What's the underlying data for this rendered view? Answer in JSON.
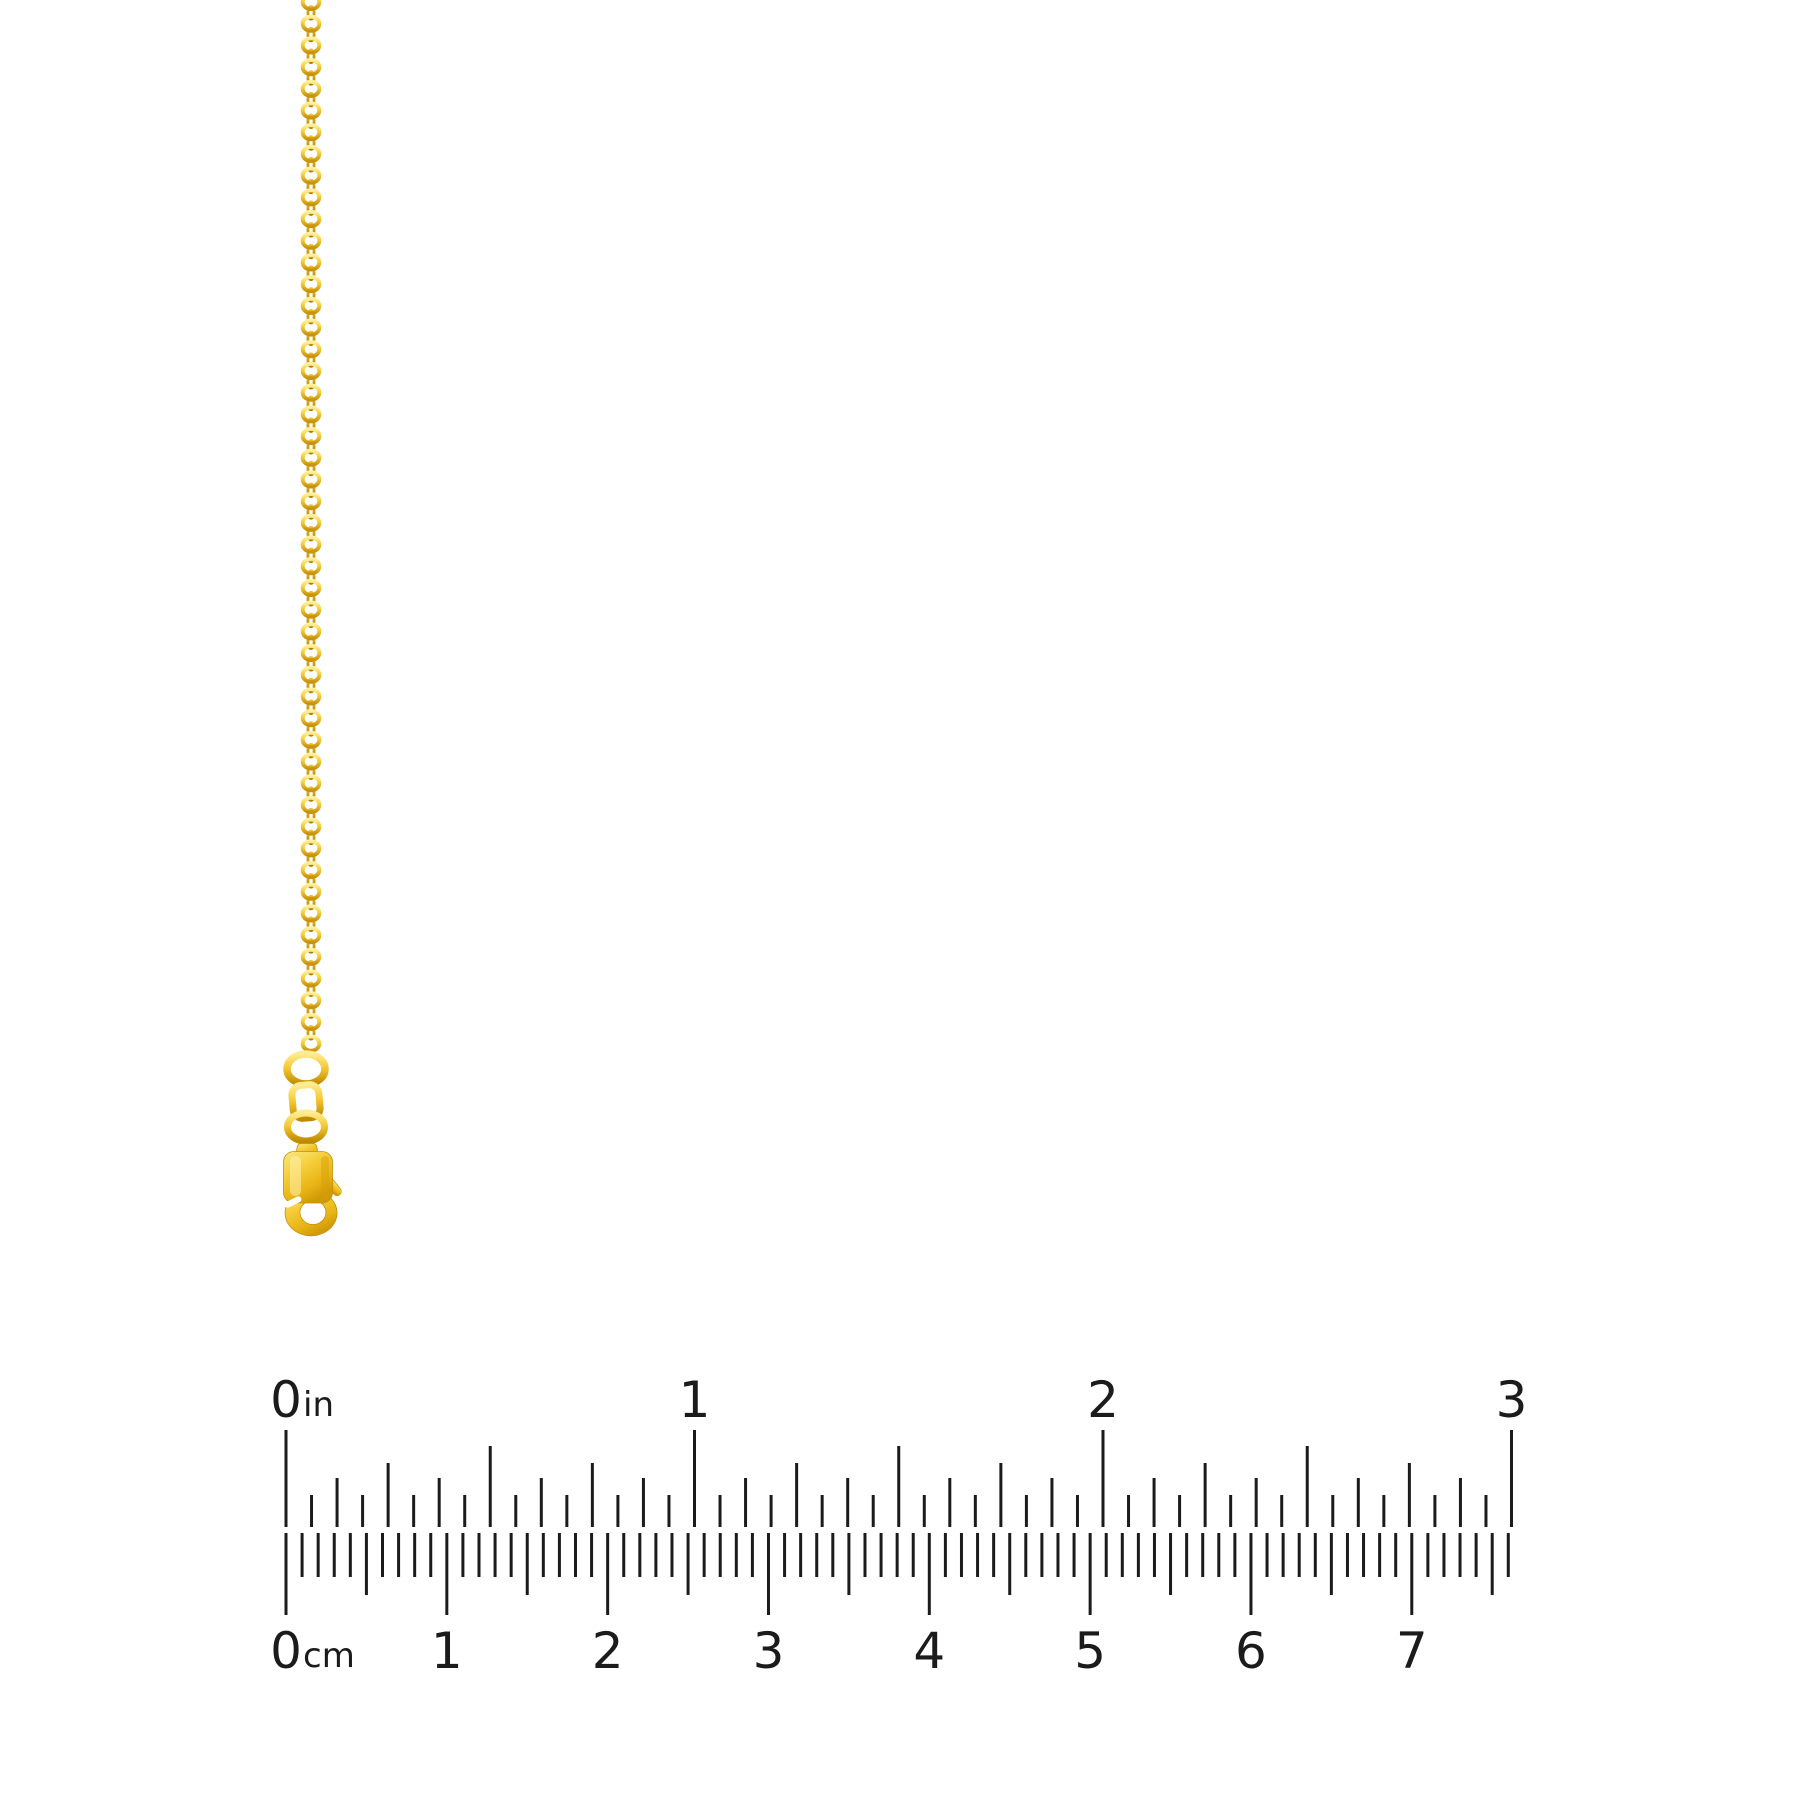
{
  "page": {
    "background_color": "#ffffff",
    "description": "Product photo of a yellow gold cable chain necklace with lobster clasp hanging vertically, with a printed inch and centimeter ruler below for scale"
  },
  "jewelry": {
    "item": "gold-cable-chain-with-lobster-clasp",
    "chain": {
      "style": "cable-link",
      "front_link_count": 49,
      "edge_link_count": 48
    },
    "clasp": {
      "type": "lobster-claw",
      "parts": [
        "jump-ring",
        "oval-connector-link",
        "round-ring",
        "lobster-clasp-body"
      ]
    },
    "gold_palette": {
      "highlight": "#FFF2A6",
      "light": "#FFE97E",
      "base": "#F5CE3B",
      "mid": "#E9B415",
      "deep": "#C8920B",
      "shadow": "#AE7E00"
    },
    "gradients": {
      "link": [
        [
          0,
          "#FFF0A0"
        ],
        [
          0.45,
          "#F6CE3A"
        ],
        [
          1,
          "#C8920B"
        ]
      ],
      "linkdark": [
        [
          0,
          "#EDBE2A"
        ],
        [
          1,
          "#AE7E00"
        ]
      ],
      "ring": [
        [
          0,
          "#FFEC90"
        ],
        [
          0.5,
          "#F2C52C"
        ],
        [
          1,
          "#BE8A03"
        ]
      ],
      "clasp": [
        [
          0,
          "#FBE985"
        ],
        [
          0.4,
          "#F5CE3B"
        ],
        [
          0.75,
          "#E9B415"
        ],
        [
          1,
          "#CE9A06"
        ]
      ]
    }
  },
  "ruler": {
    "ink_color": "#1B1B1B",
    "inch_scale": {
      "unit_label": "in",
      "labels": [
        "0",
        "1",
        "2",
        "3"
      ],
      "ticks_per_inch": 16,
      "total_ticks": 49,
      "tick_lengths": {
        "inch": 97,
        "half": 81,
        "quarter": 64,
        "eighth": 49,
        "sixteenth": 32
      }
    },
    "cm_scale": {
      "unit_label": "cm",
      "labels": [
        "0",
        "1",
        "2",
        "3",
        "4",
        "5",
        "6",
        "7"
      ],
      "ticks_per_cm": 10,
      "total_ticks": 77,
      "tick_lengths": {
        "cm": 82,
        "half_cm": 62,
        "mm": 44
      }
    }
  }
}
